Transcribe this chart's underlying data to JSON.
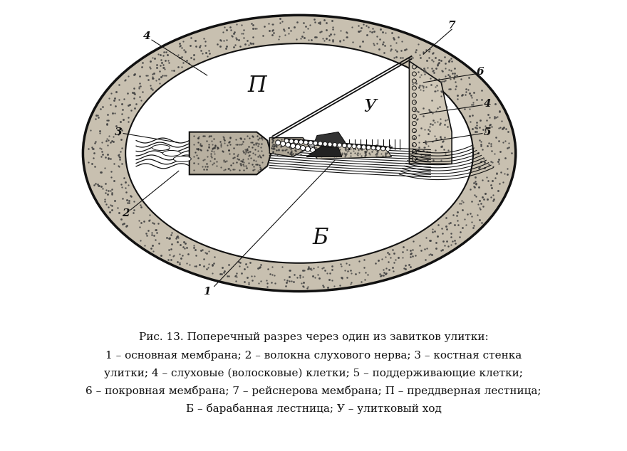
{
  "bg_color": "#ffffff",
  "figure_bg": "#ffffff",
  "caption_line1": "Рис. 13. Поперечный разрез через один из завитков улитки:",
  "caption_line2": "1 – основная мембрана; 2 – волокна слухового нерва; 3 – костная стенка",
  "caption_line3": "улитки; 4 – слуховые (волосковые) клетки; 5 – поддерживающие клетки;",
  "caption_line4": "6 – покровная мембрана; 7 – рейснерова мембрана; П – преддверная лестница;",
  "caption_line5": "Б – барабанная лестница; У – улитковый ход",
  "drawing_color": "#111111",
  "label_font_size": 11,
  "caption_font_size": 11,
  "caption_title_font_size": 11
}
